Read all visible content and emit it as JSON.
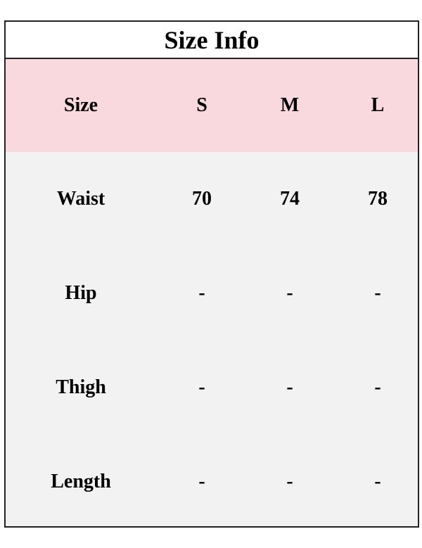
{
  "title": "Size Info",
  "header": [
    "Size",
    "S",
    "M",
    "L"
  ],
  "rows": [
    [
      "Waist",
      "70",
      "74",
      "78"
    ],
    [
      "Hip",
      "-",
      "-",
      "-"
    ],
    [
      "Thigh",
      "-",
      "-",
      "-"
    ],
    [
      "Length",
      "-",
      "-",
      "-"
    ]
  ],
  "colors": {
    "header_bg": "#f9d9de",
    "body_bg": "#f2f2f2",
    "border": "#222222"
  }
}
